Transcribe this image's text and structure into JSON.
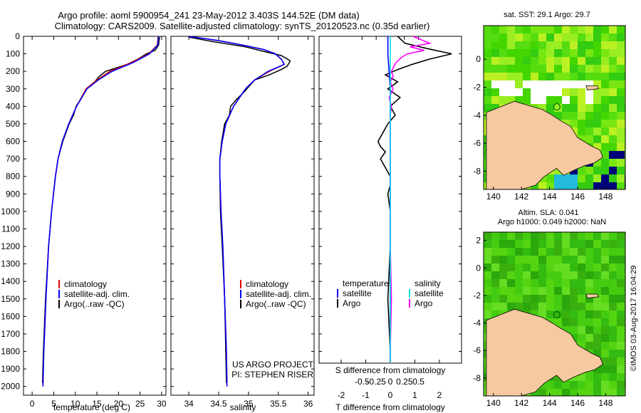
{
  "title_line1": "Argo profile: aoml 5900954_241 23-May-2012 3.403S 144.52E (DM data)",
  "title_line2": "Climatology: CARS2009. Satellite-adjusted climatology: synTS_20120523.nc (0.35d earlier)",
  "credit_side": "©IMOS 03-Aug-2017 16:04:29",
  "project_line1": "US ARGO PROJECT",
  "project_line2": "PI: STEPHEN RISER",
  "colors": {
    "climatology": "#e00000",
    "satellite": "#0000ff",
    "argo": "#000000",
    "sal_satellite": "#00e0e0",
    "sal_argo": "#ff00ff",
    "land": "#f6c9a0"
  },
  "chart_data": [
    {
      "type": "line",
      "panel": "temperature",
      "xlabel": "temperature (deg C)",
      "xlim": [
        -2,
        31
      ],
      "xticks": [
        0,
        5,
        10,
        15,
        20,
        25,
        30
      ],
      "ylim": [
        0,
        2050
      ],
      "yticks": [
        0,
        100,
        200,
        300,
        400,
        500,
        600,
        700,
        800,
        900,
        1000,
        1100,
        1200,
        1300,
        1400,
        1500,
        1600,
        1700,
        1800,
        1900,
        2000
      ],
      "legend": [
        "climatology",
        "satellite-adj. clim.",
        "Argo(..raw -QC)"
      ],
      "series": [
        {
          "name": "climatology",
          "depth": [
            0,
            50,
            100,
            150,
            200,
            250,
            300,
            400,
            500,
            600,
            700,
            800,
            1000,
            1200,
            1500,
            1800,
            2000
          ],
          "values": [
            29.2,
            29,
            27,
            23,
            18,
            15,
            12.5,
            10.3,
            8.5,
            7,
            6,
            5.4,
            4.5,
            3.8,
            3.2,
            2.7,
            2.5
          ]
        },
        {
          "name": "satellite-adj. clim.",
          "depth": [
            0,
            50,
            100,
            150,
            200,
            250,
            300,
            400,
            500,
            600,
            700,
            800,
            1000,
            1200,
            1500,
            1800,
            2000
          ],
          "values": [
            29.3,
            29.1,
            27.2,
            23.4,
            18.5,
            15.3,
            12.7,
            10.3,
            8.5,
            7,
            6,
            5.4,
            4.5,
            3.8,
            3.2,
            2.7,
            2.5
          ]
        },
        {
          "name": "Argo(..raw -QC)",
          "depth": [
            5,
            50,
            80,
            100,
            130,
            160,
            180,
            200,
            230,
            260,
            300,
            350,
            400,
            450,
            500,
            600,
            700,
            800,
            1000,
            1200,
            1500,
            1800,
            1980
          ],
          "values": [
            29.5,
            29.3,
            28.5,
            26.5,
            24.5,
            22,
            19.5,
            17,
            15.5,
            14.5,
            12.5,
            11.5,
            10.2,
            9.6,
            8.6,
            7.1,
            6,
            5.4,
            4.5,
            3.8,
            3.1,
            2.6,
            2.4
          ]
        }
      ]
    },
    {
      "type": "line",
      "panel": "salinity",
      "xlabel": "salinity",
      "xlim": [
        33.7,
        36.1
      ],
      "xticks": [
        34,
        34.5,
        35,
        35.5,
        36
      ],
      "ylim": [
        0,
        2050
      ],
      "legend": [
        "climatology",
        "satellite-adj. clim.",
        "Argo(..raw -QC)"
      ],
      "series": [
        {
          "name": "climatology",
          "depth": [
            0,
            25,
            50,
            75,
            100,
            130,
            160,
            200,
            250,
            300,
            400,
            500,
            600,
            700,
            800,
            1000,
            1200,
            1500,
            1800,
            2000
          ],
          "values": [
            34.0,
            34.5,
            34.9,
            35.25,
            35.45,
            35.55,
            35.6,
            35.35,
            35.1,
            34.95,
            34.75,
            34.62,
            34.56,
            34.52,
            34.52,
            34.54,
            34.57,
            34.6,
            34.63,
            34.64
          ]
        },
        {
          "name": "satellite-adj. clim.",
          "depth": [
            0,
            25,
            50,
            75,
            100,
            130,
            160,
            200,
            250,
            300,
            400,
            500,
            600,
            700,
            800,
            1000,
            1200,
            1500,
            1800,
            2000
          ],
          "values": [
            34.0,
            34.5,
            34.9,
            35.25,
            35.45,
            35.55,
            35.6,
            35.33,
            35.1,
            34.95,
            34.75,
            34.62,
            34.56,
            34.52,
            34.52,
            34.54,
            34.57,
            34.6,
            34.63,
            34.64
          ]
        },
        {
          "name": "Argo(..raw -QC)",
          "depth": [
            5,
            30,
            60,
            90,
            110,
            140,
            170,
            190,
            220,
            250,
            290,
            320,
            360,
            400,
            450,
            500,
            600,
            700,
            800,
            1000,
            1200,
            1500,
            1800,
            1980
          ],
          "values": [
            34.0,
            34.4,
            34.95,
            35.3,
            35.55,
            35.7,
            35.65,
            35.55,
            35.35,
            35.1,
            35.0,
            34.92,
            34.8,
            34.7,
            34.68,
            34.6,
            34.55,
            34.52,
            34.52,
            34.53,
            34.56,
            34.6,
            34.62,
            34.63
          ]
        }
      ]
    },
    {
      "type": "line",
      "panel": "difference",
      "xlabel_top": "S difference from climatology",
      "xlabel_bottom": "T difference from climatology",
      "xlim_T": [
        -2.9,
        2.9
      ],
      "xticks_T": [
        -2,
        -1,
        0,
        1,
        2
      ],
      "xticks_S": [
        -0.5,
        -0.25,
        0,
        0.25,
        0.5
      ],
      "xticklabels_S": [
        "-0.5",
        "-0.25",
        "0",
        "0.25",
        "0.5"
      ],
      "ylim": [
        0,
        2050
      ],
      "legend_left_title": "temperature",
      "legend_right_title": "salinity",
      "legend_labels": [
        "satellite",
        "Argo"
      ],
      "series": [
        {
          "name": "temperature satellite",
          "depth": [
            0,
            100,
            200,
            300,
            400,
            500,
            600,
            800,
            1000,
            1500,
            2000
          ],
          "values": [
            -0.1,
            -0.1,
            -0.05,
            0,
            0,
            0,
            0,
            0,
            0,
            0,
            0
          ]
        },
        {
          "name": "temperature Argo",
          "depth": [
            0,
            40,
            70,
            100,
            130,
            160,
            190,
            220,
            260,
            300,
            350,
            400,
            450,
            500,
            550,
            600,
            630,
            660,
            700,
            750,
            800,
            850,
            900,
            1000,
            1200,
            1500,
            1800,
            1980
          ],
          "values": [
            0.3,
            0.6,
            1.5,
            2.5,
            1.6,
            0.9,
            0.3,
            -0.2,
            0.3,
            -0.1,
            0.4,
            0,
            0.2,
            -0.1,
            -0.3,
            -0.5,
            -0.4,
            -0.2,
            -0.4,
            -0.2,
            0,
            0,
            -0.1,
            0,
            0,
            -0.1,
            0,
            0
          ]
        },
        {
          "name": "salinity satellite",
          "depth": [
            0,
            100,
            200,
            300,
            400,
            500,
            1000,
            1500,
            2000
          ],
          "values": [
            0,
            0,
            0,
            0,
            0,
            0,
            0,
            0,
            0
          ]
        },
        {
          "name": "salinity Argo",
          "depth": [
            0,
            20,
            40,
            60,
            80,
            100,
            120,
            150,
            180,
            200,
            230,
            260,
            300,
            350,
            400,
            450,
            500,
            600,
            800,
            1000,
            1200,
            1500,
            1800,
            1980
          ],
          "values": [
            0.4,
            0.55,
            0.7,
            0.35,
            0.6,
            0.3,
            0.2,
            0.1,
            0.05,
            0.02,
            0.05,
            0,
            0.05,
            -0.02,
            0.02,
            0,
            0,
            0,
            0,
            0,
            0,
            0.02,
            0,
            0
          ]
        }
      ]
    },
    {
      "type": "heatmap",
      "panel": "map-sst",
      "title": "sat. SST: 29.1 Argo: 29.7",
      "xticks": [
        140,
        142,
        144,
        146,
        148
      ],
      "yticks": [
        0,
        -2,
        -4,
        -6,
        -8
      ],
      "marker": {
        "lon": 144.52,
        "lat": -3.403
      }
    },
    {
      "type": "heatmap",
      "panel": "map-sla",
      "title_line1": "Altim. SLA: 0.041",
      "title_line2": "Argo h1000: 0.049 h2000: NaN",
      "xticks": [
        140,
        142,
        144,
        146,
        148
      ],
      "yticks": [
        2,
        0,
        -2,
        -4,
        -6,
        -8
      ],
      "marker": {
        "lon": 144.52,
        "lat": -3.403
      }
    }
  ]
}
